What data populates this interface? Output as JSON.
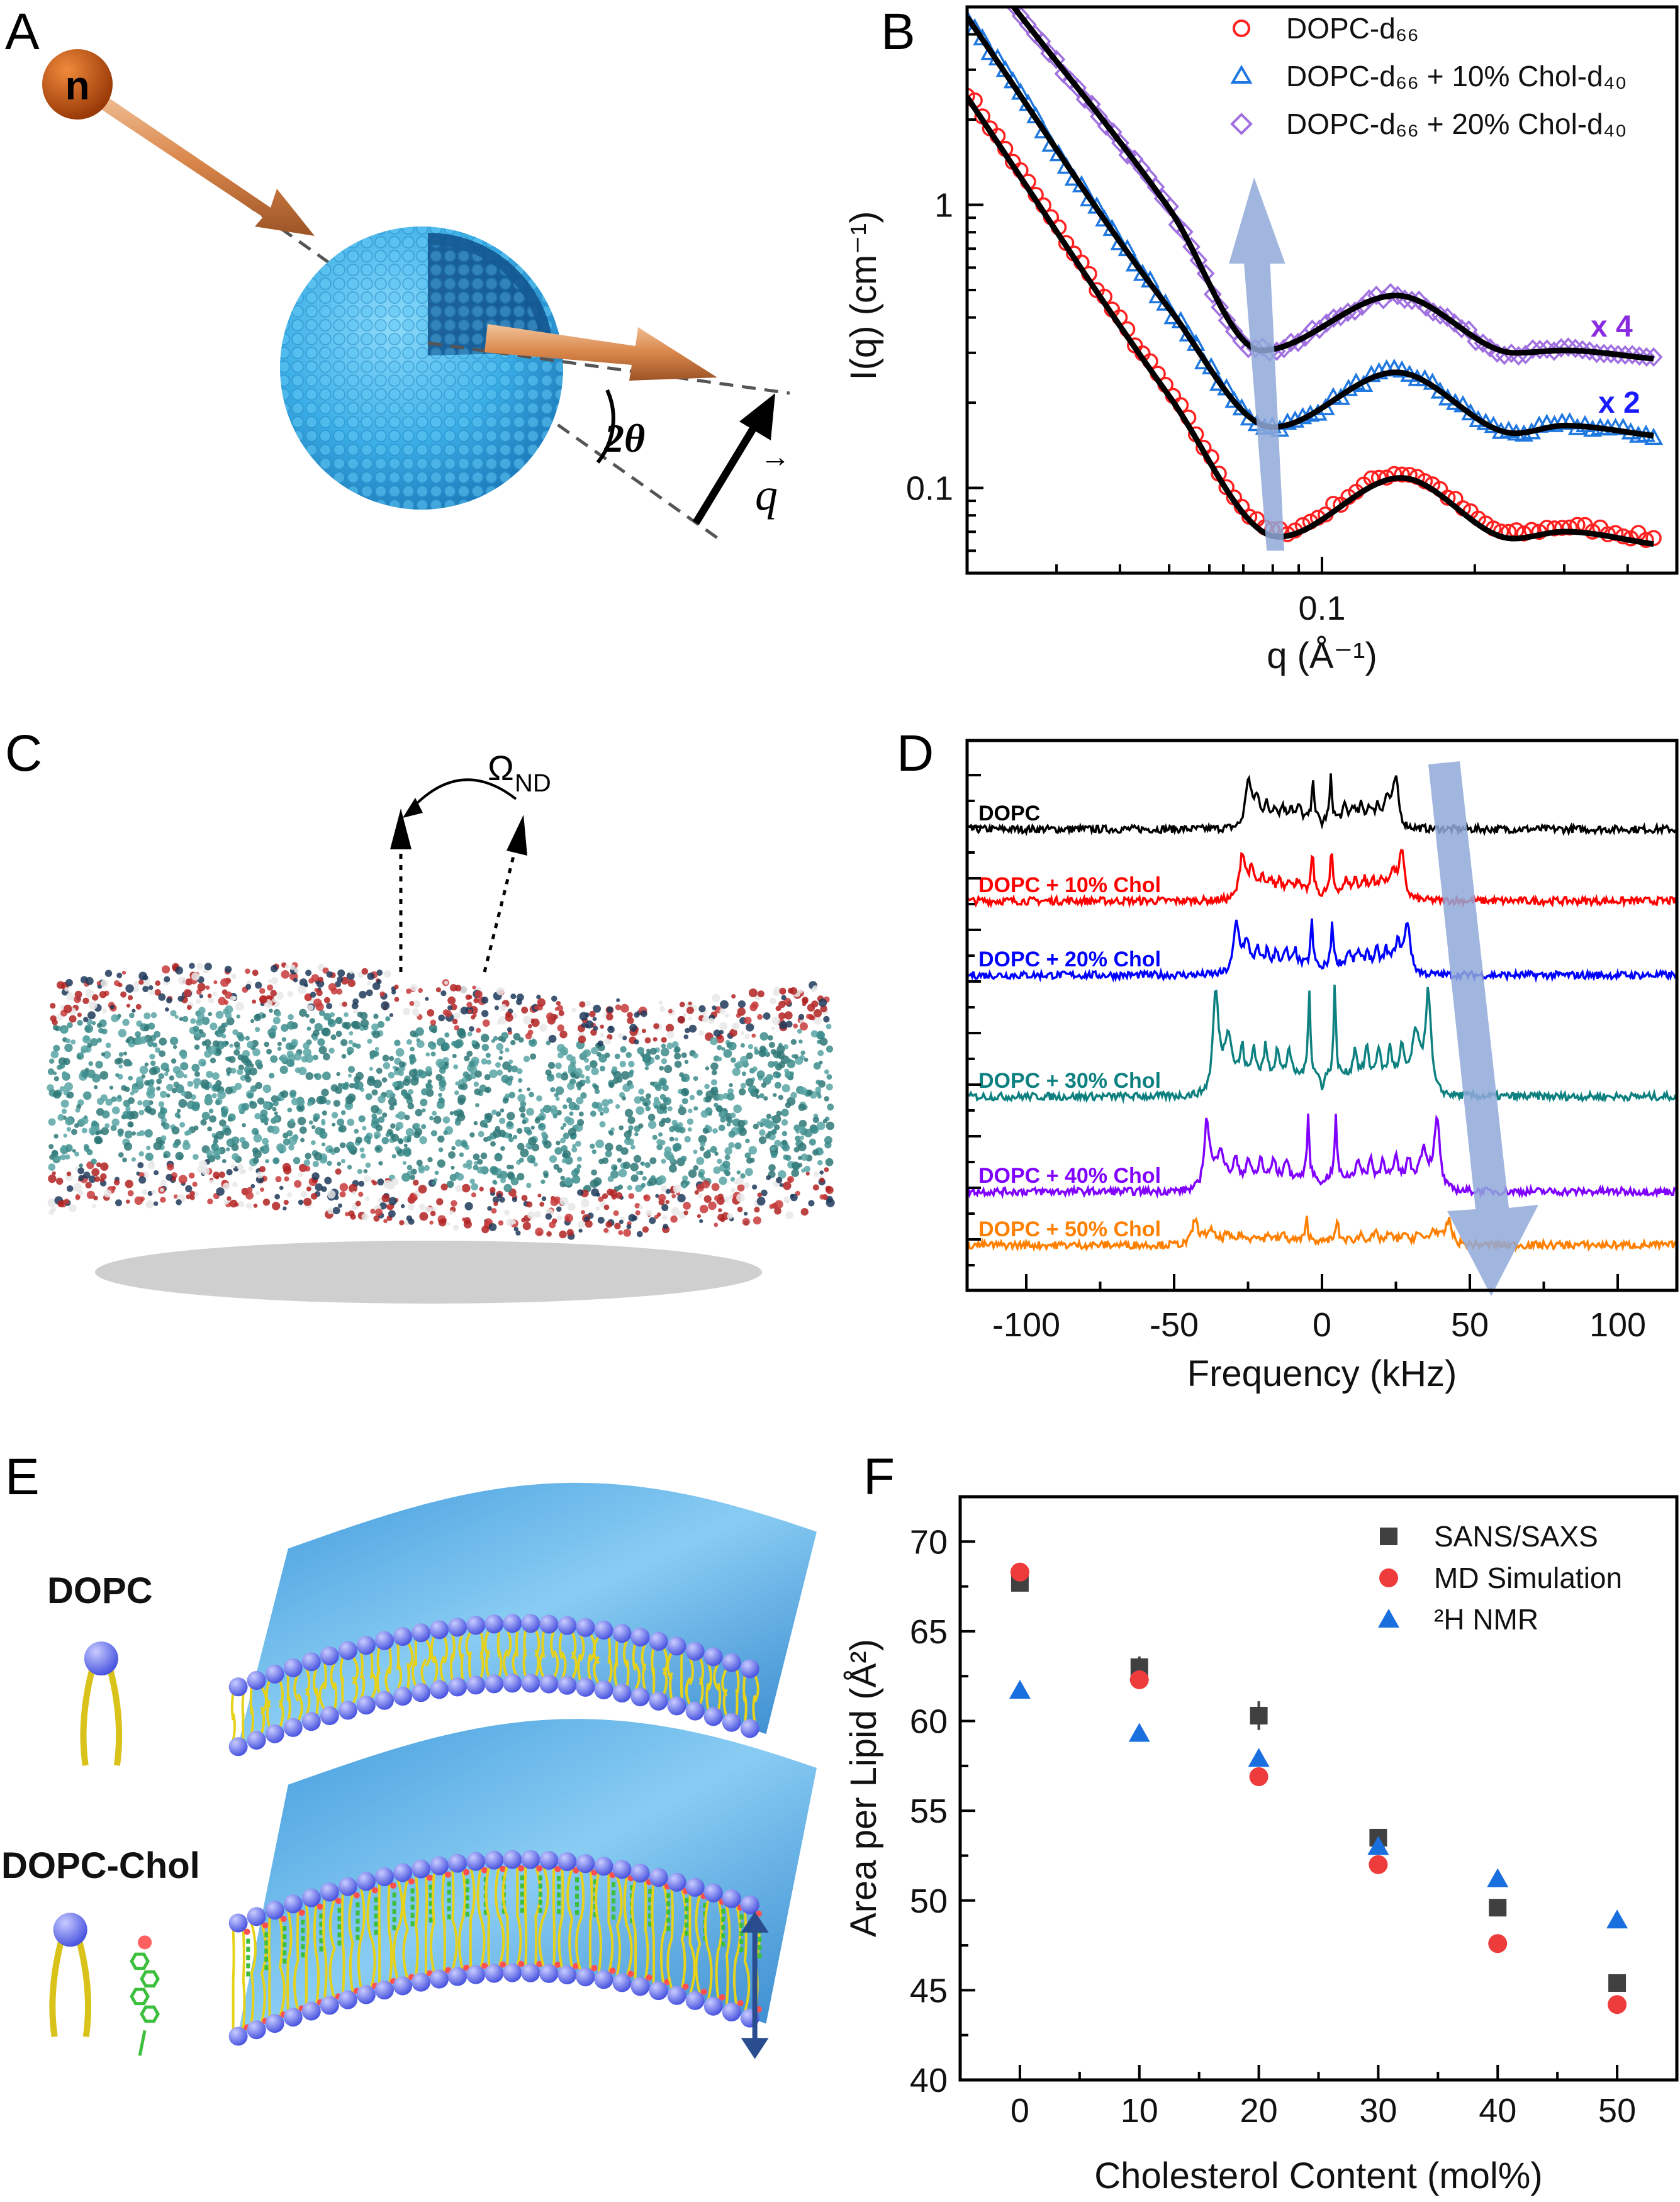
{
  "panels": {
    "a": "A",
    "b": "B",
    "c": "C",
    "d": "D",
    "e": "E",
    "f": "F"
  },
  "panel_a": {
    "neutron_label": "n",
    "angle_label": "2θ",
    "q_label": "q"
  },
  "panel_c": {
    "omega_label": "Ω",
    "omega_sub": "ND"
  },
  "panel_e": {
    "dopc_label": "DOPC",
    "dopc_chol_label": "DOPC-Chol"
  },
  "chart_data": [
    {
      "panel": "B",
      "type": "scatter+line",
      "xlabel": "q (Å⁻¹)",
      "ylabel": "I(q) (cm⁻¹)",
      "xscale": "log",
      "yscale": "log",
      "xlim": [
        0.02,
        0.5
      ],
      "ylim": [
        0.05,
        5
      ],
      "x_tick_labels": [
        "0.1"
      ],
      "y_tick_labels": [
        "0.1",
        "1"
      ],
      "legend_position": "top-right",
      "fit_color": "#000000",
      "series": [
        {
          "name": "DOPC-d₆₆",
          "marker": "open-circle",
          "color": "#ff2020",
          "points": [
            [
              0.02,
              2.5
            ],
            [
              0.05,
              0.22
            ],
            [
              0.082,
              0.07
            ],
            [
              0.143,
              0.113
            ],
            [
              0.238,
              0.069
            ],
            [
              0.3,
              0.073
            ],
            [
              0.45,
              0.066
            ]
          ]
        },
        {
          "name": "DOPC-d₆₆ + 10% Chol-d₄₀",
          "marker": "open-triangle",
          "color": "#1f77e0",
          "points": [
            [
              0.02,
              4.6
            ],
            [
              0.05,
              0.43
            ],
            [
              0.08,
              0.164
            ],
            [
              0.14,
              0.256
            ],
            [
              0.24,
              0.156
            ],
            [
              0.3,
              0.166
            ],
            [
              0.45,
              0.153
            ]
          ]
        },
        {
          "name": "DOPC-d₆₆ + 20% Chol-d₄₀",
          "marker": "open-diamond",
          "color": "#a070e0",
          "points": [
            [
              0.0247,
              5
            ],
            [
              0.05,
              0.97
            ],
            [
              0.076,
              0.306
            ],
            [
              0.14,
              0.478
            ],
            [
              0.24,
              0.3
            ],
            [
              0.3,
              0.306
            ],
            [
              0.45,
              0.286
            ]
          ]
        }
      ],
      "annotations": [
        {
          "text": "x 4",
          "color": "#8a2be2"
        },
        {
          "text": "x 2",
          "color": "#1a1aff"
        }
      ],
      "overlay_arrow": {
        "direction": "up",
        "color": "#8fa9d9"
      }
    },
    {
      "panel": "D",
      "type": "line",
      "xlabel": "Frequency (kHz)",
      "xlim": [
        -120,
        120
      ],
      "x_tick_labels": [
        "-100",
        "-50",
        "0",
        "50",
        "100"
      ],
      "x_ticks": [
        -100,
        -50,
        0,
        50,
        100
      ],
      "series": [
        {
          "name": "DOPC",
          "color": "#000000",
          "edge_splitting_khz": 25
        },
        {
          "name": "DOPC + 10% Chol",
          "color": "#ff0000",
          "edge_splitting_khz": 27
        },
        {
          "name": "DOPC + 20% Chol",
          "color": "#0000ff",
          "edge_splitting_khz": 29
        },
        {
          "name": "DOPC + 30% Chol",
          "color": "#0e8080",
          "edge_splitting_khz": 36
        },
        {
          "name": "DOPC + 40% Chol",
          "color": "#8000ff",
          "edge_splitting_khz": 39
        },
        {
          "name": "DOPC + 50% Chol",
          "color": "#ff8000",
          "edge_splitting_khz": 43
        }
      ],
      "overlay_arrow": {
        "direction": "down-right",
        "color": "#8fa9d9"
      }
    },
    {
      "panel": "F",
      "type": "scatter",
      "xlabel": "Cholesterol Content (mol%)",
      "ylabel": "Area per Lipid (Å²)",
      "xlim": [
        -5,
        55
      ],
      "ylim": [
        40,
        72.5
      ],
      "x_ticks": [
        0,
        10,
        20,
        30,
        40,
        50
      ],
      "x_tick_labels": [
        "0",
        "10",
        "20",
        "30",
        "40",
        "50"
      ],
      "y_ticks": [
        40,
        45,
        50,
        55,
        60,
        65,
        70
      ],
      "y_tick_labels": [
        "40",
        "45",
        "50",
        "55",
        "60",
        "65",
        "70"
      ],
      "legend_position": "top-right",
      "x": [
        0,
        10,
        20,
        30,
        40,
        50
      ],
      "series": [
        {
          "name": "SANS/SAXS",
          "marker": "square",
          "color": "#404040",
          "values": [
            67.7,
            63.0,
            60.3,
            53.5,
            49.6,
            45.4
          ],
          "errors": [
            0.3,
            0.6,
            0.8,
            0.3,
            0.3,
            0.3
          ]
        },
        {
          "name": "MD Simulation",
          "marker": "circle",
          "color": "#ee3b3b",
          "values": [
            68.3,
            62.3,
            56.9,
            52.0,
            47.6,
            44.2
          ]
        },
        {
          "name": "²H NMR",
          "marker": "triangle",
          "color": "#1a6fdf",
          "values": [
            61.7,
            59.3,
            57.9,
            53.0,
            51.2,
            48.9
          ]
        }
      ]
    }
  ]
}
